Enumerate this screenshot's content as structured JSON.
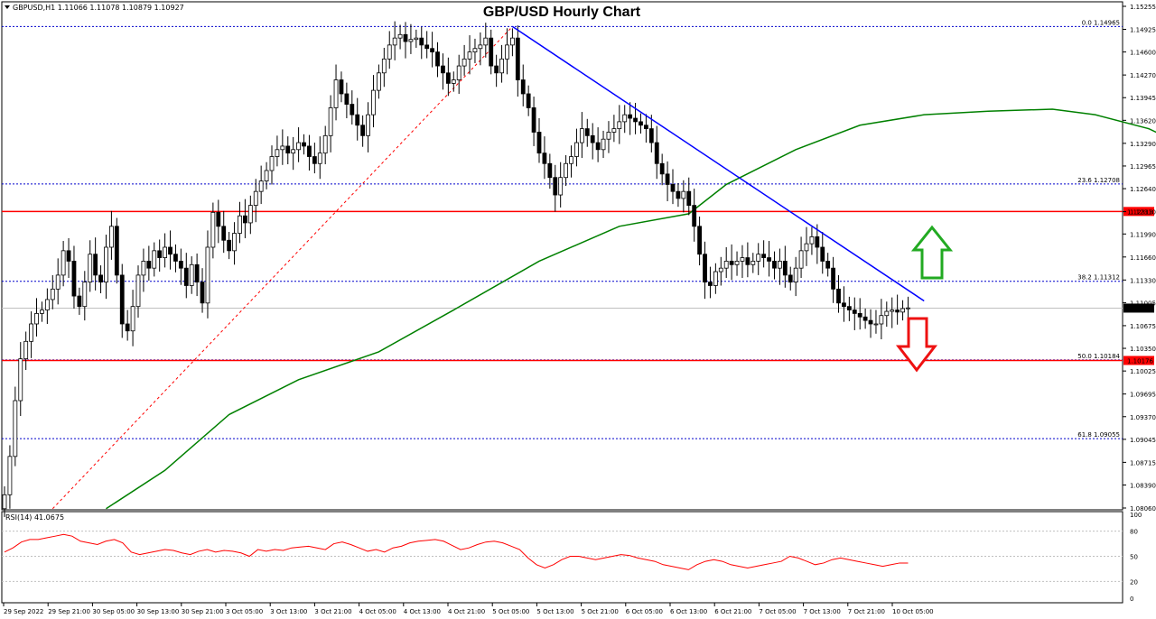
{
  "chart_data": {
    "type": "candlestick",
    "title": "GBP/USD Hourly Chart",
    "symbol_info": "GBPUSD,H1  1.11066 1.11078 1.10879 1.10927",
    "price_axis_ticks": [
      "1.15255",
      "1.14925",
      "1.14600",
      "1.14270",
      "1.13945",
      "1.13620",
      "1.13290",
      "1.12965",
      "1.12640",
      "1.12310",
      "1.11990",
      "1.11660",
      "1.11330",
      "1.11005",
      "1.10675",
      "1.10350",
      "1.10025",
      "1.09695",
      "1.09370",
      "1.09045",
      "1.08715",
      "1.08390",
      "1.08060"
    ],
    "time_axis_labels": [
      "29 Sep 2022",
      "29 Sep 21:00",
      "30 Sep 05:00",
      "30 Sep 13:00",
      "30 Sep 21:00",
      "3 Oct 05:00",
      "3 Oct 13:00",
      "3 Oct 21:00",
      "4 Oct 05:00",
      "4 Oct 13:00",
      "4 Oct 21:00",
      "5 Oct 05:00",
      "5 Oct 13:00",
      "5 Oct 21:00",
      "6 Oct 05:00",
      "6 Oct 13:00",
      "6 Oct 21:00",
      "7 Oct 05:00",
      "7 Oct 13:00",
      "7 Oct 21:00",
      "10 Oct 05:00"
    ],
    "horizontal_levels": [
      {
        "label": "0.0 1.14965",
        "price": 1.14965,
        "style": "dotted",
        "color": "#0000cc"
      },
      {
        "label": "23.6 1.12708",
        "price": 1.12708,
        "style": "dotted",
        "color": "#0000cc"
      },
      {
        "label": "1.12313",
        "price": 1.12313,
        "style": "solid",
        "color": "#ff0000"
      },
      {
        "label": "38.2 1.11312",
        "price": 1.11312,
        "style": "dotted",
        "color": "#0000cc"
      },
      {
        "label": "1.10927",
        "price": 1.10927,
        "style": "current",
        "color": "#c0c0c0"
      },
      {
        "label": "50.0 1.10184",
        "price": 1.10184,
        "style": "dotted",
        "color": "#0000cc"
      },
      {
        "label": "1.10176",
        "price": 1.10176,
        "style": "solid",
        "color": "#ff0000"
      },
      {
        "label": "61.8 1.09055",
        "price": 1.09055,
        "style": "dotted",
        "color": "#0000cc"
      }
    ],
    "current_price": "1.10927",
    "support_label": "1.10176",
    "resistance_label": "1.12313",
    "trendline": {
      "from": {
        "bar": 95,
        "price": 1.14965
      },
      "to": {
        "bar": 172,
        "price": 1.1103
      },
      "color": "#0000ff"
    },
    "fib_line": {
      "from": {
        "bar": 9,
        "price": 1.0805
      },
      "to": {
        "bar": 95,
        "price": 1.14965
      },
      "color": "#ff0000"
    },
    "moving_average_color": "#008000",
    "rsi": {
      "label": "RSI(14) 41.0675",
      "ticks": [
        "100",
        "80",
        "50",
        "20",
        "0"
      ],
      "levels": [
        80,
        50,
        20
      ],
      "color": "#ff0000"
    },
    "arrows": [
      {
        "direction": "up",
        "color": "#22aa22"
      },
      {
        "direction": "down",
        "color": "#ee1111"
      }
    ],
    "closes": [
      1.0825,
      1.088,
      1.096,
      1.102,
      1.1045,
      1.107,
      1.1085,
      1.109,
      1.1105,
      1.112,
      1.114,
      1.1175,
      1.116,
      1.111,
      1.1095,
      1.113,
      1.117,
      1.114,
      1.113,
      1.118,
      1.121,
      1.114,
      1.107,
      1.106,
      1.1095,
      1.114,
      1.116,
      1.115,
      1.1175,
      1.1165,
      1.118,
      1.117,
      1.116,
      1.115,
      1.1125,
      1.1155,
      1.113,
      1.11,
      1.118,
      1.123,
      1.121,
      1.119,
      1.1175,
      1.12,
      1.1225,
      1.1215,
      1.124,
      1.126,
      1.1275,
      1.129,
      1.131,
      1.132,
      1.1325,
      1.1315,
      1.132,
      1.133,
      1.1325,
      1.131,
      1.13,
      1.1315,
      1.134,
      1.138,
      1.142,
      1.14,
      1.1385,
      1.137,
      1.1355,
      1.134,
      1.137,
      1.1405,
      1.143,
      1.145,
      1.147,
      1.148,
      1.1485,
      1.1475,
      1.1478,
      1.148,
      1.147,
      1.1465,
      1.146,
      1.144,
      1.143,
      1.1415,
      1.142,
      1.144,
      1.145,
      1.146,
      1.1465,
      1.147,
      1.148,
      1.144,
      1.143,
      1.145,
      1.147,
      1.148,
      1.142,
      1.14,
      1.138,
      1.1345,
      1.1315,
      1.13,
      1.128,
      1.1255,
      1.128,
      1.13,
      1.131,
      1.133,
      1.135,
      1.134,
      1.133,
      1.132,
      1.1335,
      1.1345,
      1.135,
      1.136,
      1.137,
      1.1365,
      1.136,
      1.1355,
      1.135,
      1.133,
      1.13,
      1.1285,
      1.127,
      1.126,
      1.125,
      1.126,
      1.124,
      1.121,
      1.117,
      1.113,
      1.1125,
      1.1145,
      1.115,
      1.116,
      1.1155,
      1.116,
      1.1165,
      1.1155,
      1.116,
      1.117,
      1.1165,
      1.116,
      1.115,
      1.116,
      1.114,
      1.113,
      1.115,
      1.1175,
      1.1185,
      1.1195,
      1.118,
      1.116,
      1.115,
      1.112,
      1.11,
      1.1095,
      1.109,
      1.1085,
      1.108,
      1.1075,
      1.107,
      1.107,
      1.1082,
      1.1088,
      1.109,
      1.1087,
      1.1092,
      1.1093
    ],
    "ma_points": [
      [
        19,
        1.0805
      ],
      [
        30,
        1.086
      ],
      [
        42,
        1.094
      ],
      [
        55,
        1.099
      ],
      [
        70,
        1.103
      ],
      [
        84,
        1.109
      ],
      [
        100,
        1.116
      ],
      [
        115,
        1.121
      ],
      [
        128,
        1.1228
      ],
      [
        135,
        1.127
      ],
      [
        148,
        1.132
      ],
      [
        160,
        1.1355
      ],
      [
        172,
        1.137
      ],
      [
        184,
        1.1375
      ],
      [
        196,
        1.1378
      ],
      [
        204,
        1.137
      ],
      [
        214,
        1.135
      ],
      [
        228,
        1.13
      ],
      [
        244,
        1.1262
      ],
      [
        260,
        1.123
      ],
      [
        275,
        1.12
      ]
    ],
    "rsi_values": [
      55,
      60,
      67,
      70,
      70,
      72,
      74,
      76,
      74,
      68,
      66,
      64,
      68,
      70,
      66,
      55,
      52,
      54,
      56,
      58,
      57,
      54,
      52,
      56,
      58,
      55,
      57,
      56,
      54,
      50,
      58,
      56,
      58,
      57,
      60,
      61,
      62,
      60,
      58,
      65,
      67,
      64,
      60,
      56,
      58,
      55,
      60,
      62,
      66,
      68,
      69,
      70,
      68,
      63,
      58,
      60,
      64,
      67,
      68,
      66,
      62,
      58,
      48,
      40,
      36,
      40,
      46,
      50,
      50,
      48,
      46,
      48,
      50,
      52,
      51,
      48,
      46,
      44,
      40,
      38,
      36,
      34,
      40,
      44,
      46,
      44,
      40,
      38,
      36,
      38,
      40,
      42,
      44,
      50,
      48,
      44,
      40,
      42,
      46,
      48,
      46,
      44,
      42,
      40,
      38,
      40,
      42,
      42
    ]
  }
}
